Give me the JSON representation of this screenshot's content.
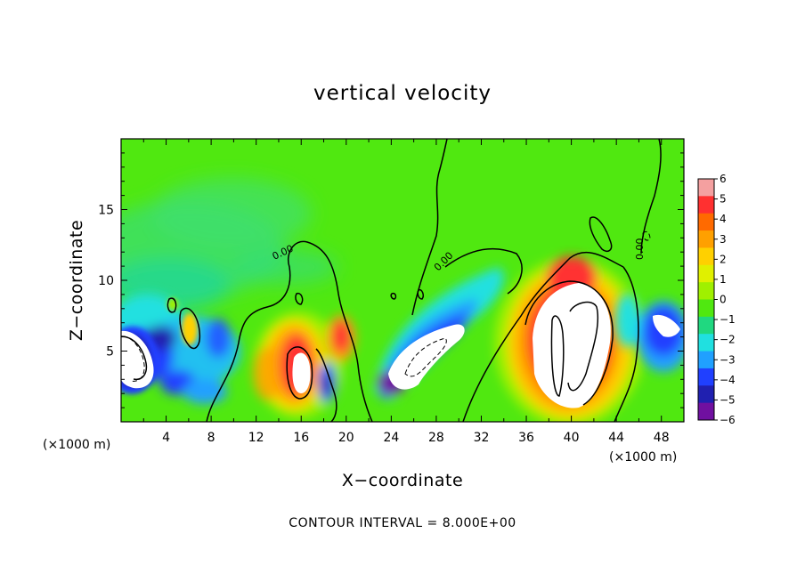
{
  "chart_data": {
    "type": "heatmap",
    "title": "vertical velocity",
    "xlabel": "X−coordinate",
    "ylabel": "Z−coordinate",
    "x_unit": "(×1000 m)",
    "y_unit": "(×1000 m)",
    "x_range": [
      0,
      50
    ],
    "y_range": [
      0,
      20
    ],
    "x_ticks": [
      "4",
      "8",
      "12",
      "16",
      "20",
      "24",
      "28",
      "32",
      "36",
      "40",
      "44",
      "48"
    ],
    "y_ticks": [
      "5",
      "10",
      "15"
    ],
    "colorbar": {
      "min": -6,
      "max": 6,
      "tick_labels": [
        "6",
        "5",
        "4",
        "3",
        "2",
        "1",
        "0",
        "−1",
        "−2",
        "−3",
        "−4",
        "−5",
        "−6"
      ],
      "colors": [
        "#f4a0a0",
        "#ff3030",
        "#ff6a00",
        "#ffa000",
        "#ffd000",
        "#e0f000",
        "#a0f000",
        "#50e810",
        "#20d880",
        "#20e0e0",
        "#20a0ff",
        "#2040ff",
        "#2020b0",
        "#7010a0"
      ]
    },
    "contour_labels": [
      "0.00",
      "0.00",
      "0.00"
    ],
    "contour_interval_text": "CONTOUR INTERVAL = 8.000E+00",
    "features": [
      {
        "kind": "updraft",
        "x": 15.5,
        "z": 4,
        "value": 6
      },
      {
        "kind": "updraft",
        "x": 19.5,
        "z": 5.5,
        "value": 4
      },
      {
        "kind": "updraft",
        "x": 39.5,
        "z": 5,
        "value": 6
      },
      {
        "kind": "downdraft",
        "x": 1.5,
        "z": 4.5,
        "value": -6
      },
      {
        "kind": "downdraft",
        "x": 26.5,
        "z": 5,
        "value": -6
      },
      {
        "kind": "downdraft",
        "x": 18,
        "z": 3,
        "value": -5
      },
      {
        "kind": "downdraft",
        "x": 48,
        "z": 6,
        "value": -6
      }
    ]
  }
}
